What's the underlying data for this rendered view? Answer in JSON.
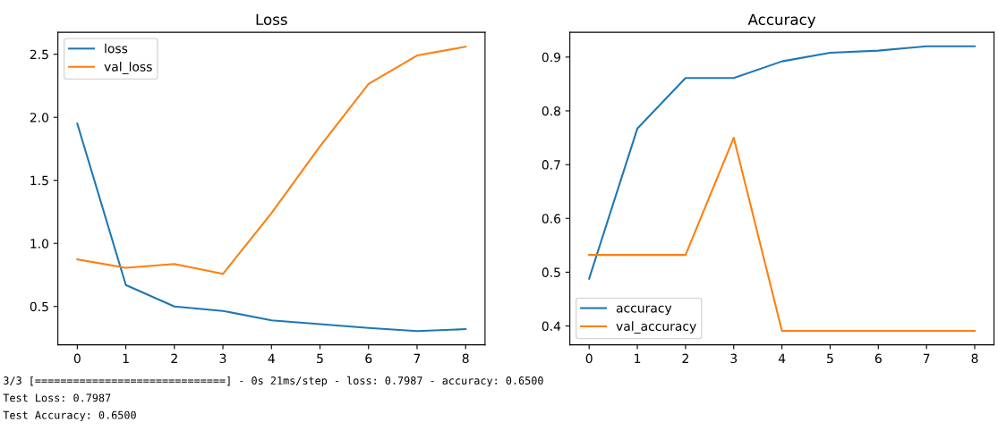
{
  "chart_data": [
    {
      "type": "line",
      "title": "Loss",
      "x": [
        0,
        1,
        2,
        3,
        4,
        5,
        6,
        7,
        8
      ],
      "xlim": [
        -0.4,
        8.4
      ],
      "xticks": [
        0,
        1,
        2,
        3,
        4,
        5,
        6,
        7,
        8
      ],
      "ylim": [
        0.196,
        2.674
      ],
      "yticks": [
        {
          "value": 0.5,
          "label": "0.5"
        },
        {
          "value": 1.0,
          "label": "1.0"
        },
        {
          "value": 1.5,
          "label": "1.5"
        },
        {
          "value": 2.0,
          "label": "2.0"
        },
        {
          "value": 2.5,
          "label": "2.5"
        }
      ],
      "legend": "top left",
      "grid": false,
      "series": [
        {
          "name": "loss",
          "color": "#1f77b4",
          "values": [
            1.95,
            0.67,
            0.5,
            0.465,
            0.39,
            0.36,
            0.33,
            0.305,
            0.32
          ]
        },
        {
          "name": "val_loss",
          "color": "#ff7f0e",
          "values": [
            0.873,
            0.807,
            0.837,
            0.758,
            1.24,
            1.77,
            2.265,
            2.49,
            2.56
          ]
        }
      ],
      "annotations": [
        "3/3 [==============================] - 0s 21ms/step - loss: 0.7987 - accuracy: 0.6500",
        "Test Loss: 0.7987",
        "Test Accuracy: 0.6500"
      ]
    },
    {
      "type": "line",
      "title": "Accuracy",
      "x": [
        0,
        1,
        2,
        3,
        4,
        5,
        6,
        7,
        8
      ],
      "xlim": [
        -0.4,
        8.4
      ],
      "xticks": [
        0,
        1,
        2,
        3,
        4,
        5,
        6,
        7,
        8
      ],
      "ylim": [
        0.365,
        0.946
      ],
      "yticks": [
        0.4,
        0.5,
        0.6,
        0.7,
        0.8,
        0.9
      ],
      "legend": "bottom left",
      "grid": false,
      "series": [
        {
          "name": "accuracy",
          "color": "#1f77b4",
          "values": [
            0.488,
            0.767,
            0.861,
            0.861,
            0.892,
            0.908,
            0.912,
            0.92,
            0.92
          ]
        },
        {
          "name": "val_accuracy",
          "color": "#ff7f0e",
          "values": [
            0.532,
            0.532,
            0.532,
            0.75,
            0.391,
            0.391,
            0.391,
            0.391,
            0.391
          ]
        }
      ]
    }
  ]
}
